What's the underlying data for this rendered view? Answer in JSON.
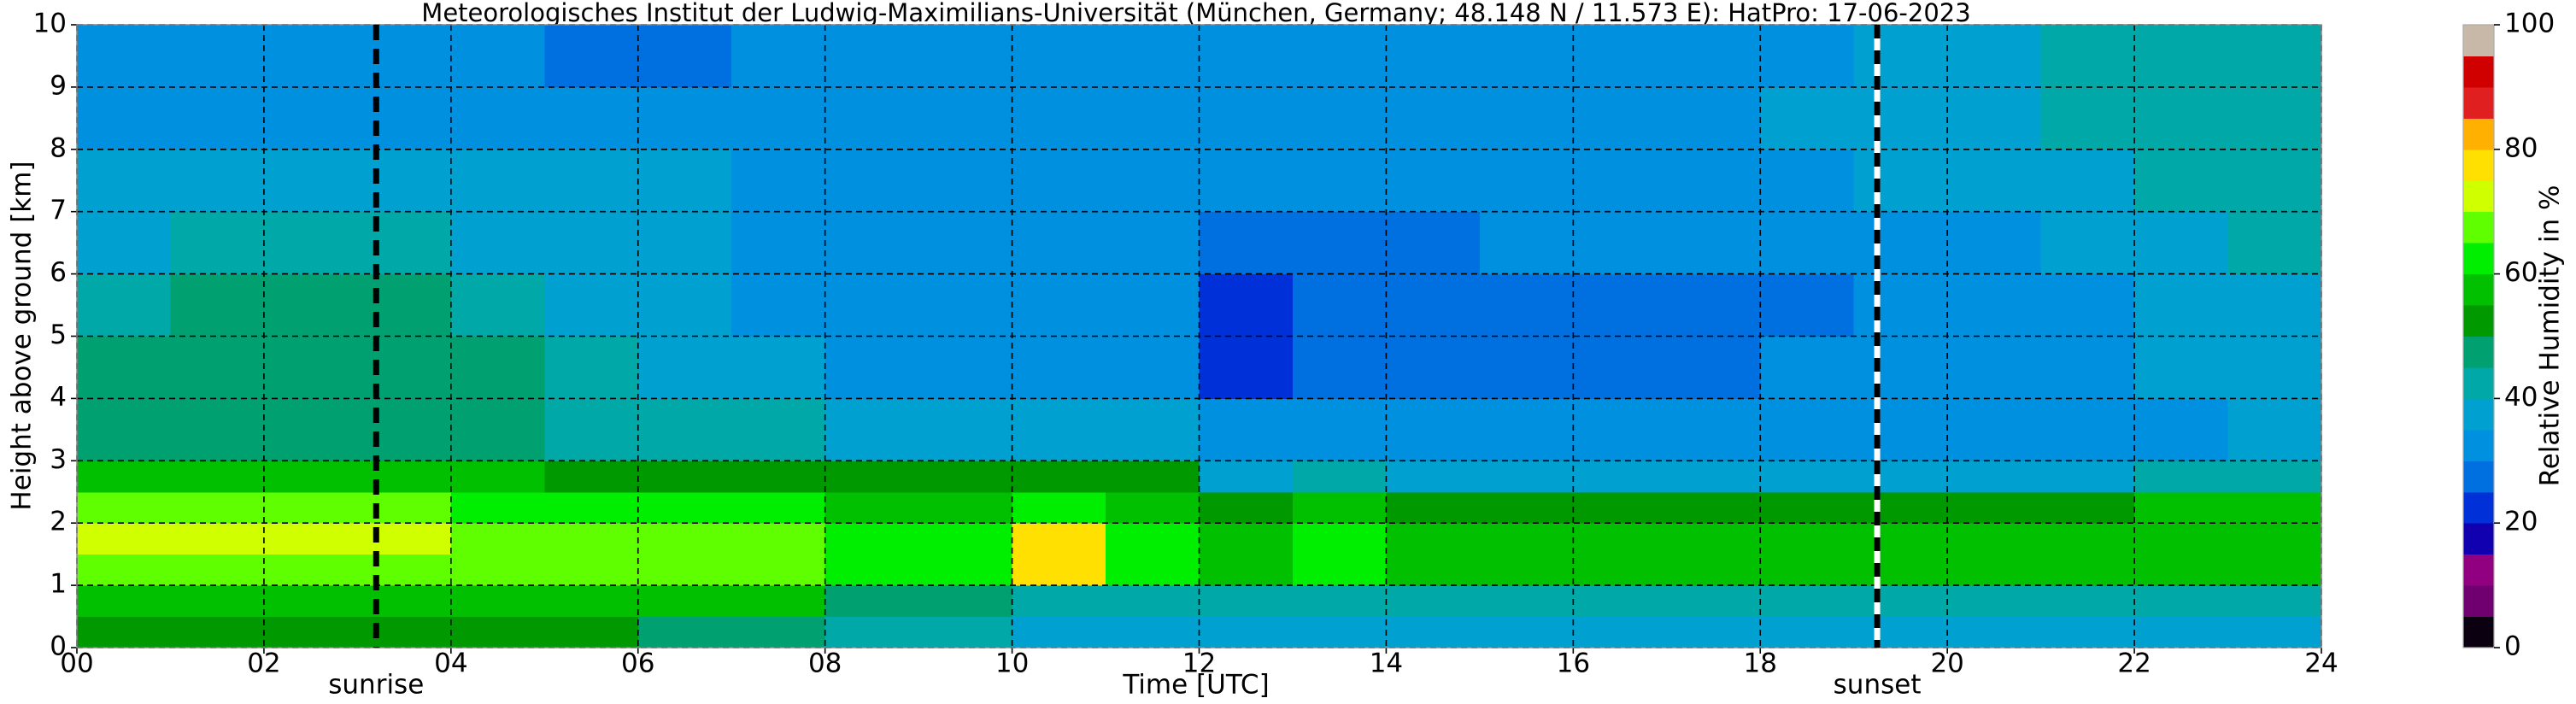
{
  "chart_data": {
    "type": "heatmap",
    "title": "Meteorologisches Institut der Ludwig-Maximilians-Universität (München, Germany; 48.148 N / 11.573 E):    HatPro: 17-06-2023",
    "xlabel": "Time [UTC]",
    "ylabel": "Height above ground [km]",
    "x": [
      0,
      1,
      2,
      3,
      4,
      5,
      6,
      7,
      8,
      9,
      10,
      11,
      12,
      13,
      14,
      15,
      16,
      17,
      18,
      19,
      20,
      21,
      22,
      23,
      24
    ],
    "y": [
      0,
      0.5,
      1,
      1.5,
      2,
      2.5,
      3,
      4,
      5,
      6,
      7,
      8,
      9,
      10
    ],
    "values": [
      [
        50,
        50,
        52,
        52,
        52,
        50,
        48,
        46,
        40,
        40,
        38,
        38,
        38,
        38,
        38,
        38,
        38,
        38,
        38,
        38,
        38,
        38,
        38,
        38
      ],
      [
        55,
        55,
        56,
        56,
        56,
        58,
        58,
        56,
        48,
        45,
        42,
        42,
        42,
        42,
        42,
        42,
        42,
        42,
        42,
        42,
        42,
        42,
        40,
        40
      ],
      [
        68,
        68,
        68,
        68,
        67,
        66,
        66,
        66,
        60,
        60,
        78,
        62,
        58,
        60,
        58,
        58,
        58,
        58,
        57,
        57,
        57,
        56,
        55,
        55
      ],
      [
        70,
        70,
        70,
        70,
        68,
        66,
        66,
        66,
        60,
        61,
        78,
        62,
        58,
        62,
        58,
        58,
        58,
        58,
        57,
        57,
        57,
        56,
        56,
        56
      ],
      [
        66,
        66,
        66,
        66,
        64,
        62,
        62,
        60,
        55,
        56,
        60,
        56,
        54,
        55,
        54,
        54,
        54,
        54,
        54,
        54,
        54,
        54,
        55,
        55
      ],
      [
        58,
        58,
        58,
        58,
        56,
        54,
        54,
        52,
        50,
        52,
        54,
        50,
        38,
        40,
        38,
        38,
        38,
        38,
        38,
        38,
        38,
        38,
        42,
        42
      ],
      [
        48,
        48,
        48,
        48,
        48,
        44,
        42,
        42,
        36,
        36,
        36,
        36,
        30,
        32,
        32,
        32,
        32,
        32,
        32,
        32,
        32,
        34,
        34,
        36
      ],
      [
        46,
        48,
        48,
        48,
        46,
        40,
        38,
        36,
        32,
        32,
        32,
        32,
        24,
        28,
        26,
        28,
        28,
        28,
        30,
        32,
        32,
        34,
        36,
        38
      ],
      [
        42,
        45,
        46,
        45,
        42,
        36,
        36,
        34,
        32,
        32,
        32,
        30,
        24,
        28,
        26,
        28,
        26,
        28,
        28,
        30,
        32,
        34,
        36,
        38
      ],
      [
        38,
        40,
        40,
        40,
        38,
        36,
        35,
        34,
        33,
        33,
        32,
        30,
        26,
        28,
        28,
        30,
        30,
        30,
        32,
        32,
        34,
        36,
        38,
        40
      ],
      [
        36,
        36,
        36,
        36,
        36,
        35,
        35,
        34,
        34,
        34,
        34,
        34,
        32,
        34,
        34,
        34,
        34,
        34,
        34,
        35,
        36,
        38,
        40,
        40
      ],
      [
        34,
        34,
        34,
        34,
        34,
        34,
        34,
        34,
        34,
        34,
        34,
        34,
        34,
        34,
        34,
        34,
        34,
        34,
        35,
        36,
        38,
        40,
        42,
        42
      ],
      [
        32,
        32,
        32,
        32,
        30,
        28,
        28,
        30,
        30,
        30,
        30,
        30,
        32,
        32,
        32,
        32,
        32,
        32,
        34,
        36,
        38,
        40,
        42,
        42
      ]
    ],
    "xlim": [
      0,
      24
    ],
    "xticks": [
      {
        "value": 0,
        "label": "00"
      },
      {
        "value": 2,
        "label": "02"
      },
      {
        "value": 4,
        "label": "04"
      },
      {
        "value": 6,
        "label": "06"
      },
      {
        "value": 8,
        "label": "08"
      },
      {
        "value": 10,
        "label": "10"
      },
      {
        "value": 12,
        "label": "12"
      },
      {
        "value": 14,
        "label": "14"
      },
      {
        "value": 16,
        "label": "16"
      },
      {
        "value": 18,
        "label": "18"
      },
      {
        "value": 20,
        "label": "20"
      },
      {
        "value": 22,
        "label": "22"
      },
      {
        "value": 24,
        "label": "24"
      }
    ],
    "ylim": [
      0,
      10
    ],
    "yticks": [
      0,
      1,
      2,
      3,
      4,
      5,
      6,
      7,
      8,
      9,
      10
    ],
    "grid": true,
    "markers": [
      {
        "text": "sunrise",
        "x": 3.2,
        "color": "#000000"
      },
      {
        "text": "sunset",
        "x": 19.25,
        "color": "#ffffff"
      }
    ],
    "colorbar": {
      "label": "Relative Humidity in %",
      "lim": [
        0,
        100
      ],
      "ticks": [
        0,
        20,
        40,
        60,
        80,
        100
      ],
      "colors": [
        "#0a0010",
        "#700070",
        "#900080",
        "#1000b0",
        "#0030d8",
        "#0070e0",
        "#0090e0",
        "#00a0d0",
        "#00a8a8",
        "#00a070",
        "#009900",
        "#00c000",
        "#00ee00",
        "#60ff00",
        "#d0ff00",
        "#ffe000",
        "#ffb000",
        "#e02020",
        "#d00000",
        "#c8b8a8"
      ]
    }
  }
}
